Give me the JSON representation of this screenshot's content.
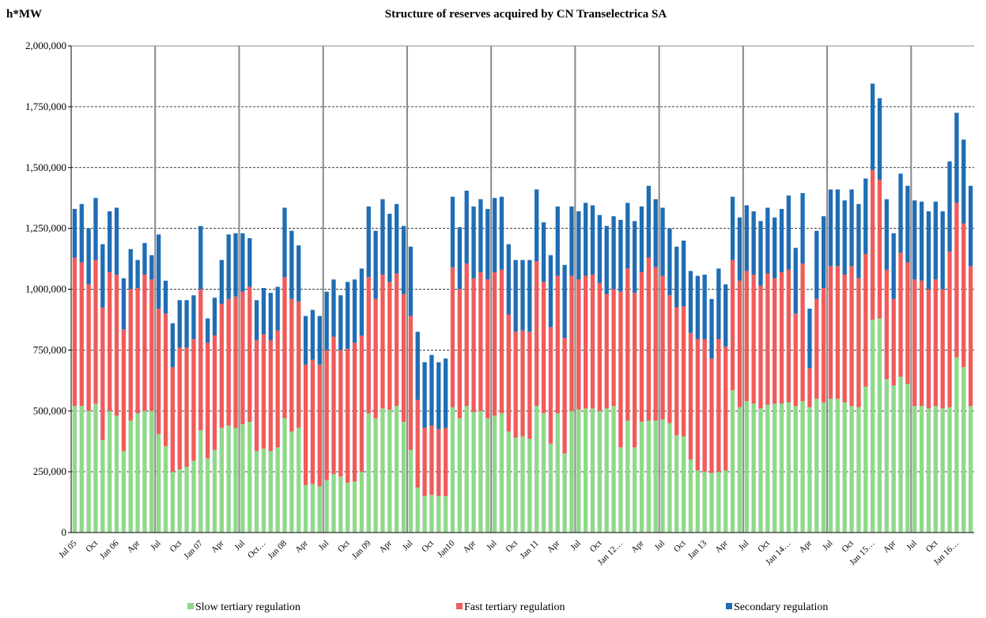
{
  "chart_data": {
    "type": "stacked_bar",
    "title": "Structure of reserves acquired by CN Transelectrica SA",
    "y_axis_label": "h*MW",
    "categories": [
      "Jul 05",
      null,
      null,
      "Oct",
      null,
      null,
      "Jan 06",
      null,
      null,
      "Apr",
      null,
      null,
      "Jul",
      null,
      null,
      "Oct",
      null,
      null,
      "Jan 07",
      null,
      null,
      "Apr",
      null,
      null,
      "Jul",
      null,
      null,
      "Oct…",
      null,
      null,
      "Jan 08",
      null,
      null,
      "Apr",
      null,
      null,
      "Jul",
      null,
      null,
      "Oct",
      null,
      null,
      "Jan 09",
      null,
      null,
      "Apr",
      null,
      null,
      "Jul",
      null,
      null,
      "Oct",
      null,
      null,
      "Jan10",
      null,
      null,
      "Apr",
      null,
      null,
      "Jul",
      null,
      null,
      "Oct",
      null,
      null,
      "Jan 11",
      null,
      null,
      "Apr",
      null,
      null,
      "Jul",
      null,
      null,
      "Oct",
      null,
      null,
      "Jan 12…",
      null,
      null,
      "Apr",
      null,
      null,
      "Jul",
      null,
      null,
      "Oct",
      null,
      null,
      "Jan 13",
      null,
      null,
      "Apr",
      null,
      null,
      "Jul",
      null,
      null,
      "Oct",
      null,
      null,
      "Jan 14…",
      null,
      null,
      "Apr",
      null,
      null,
      "Jul",
      null,
      null,
      "Oct",
      null,
      null,
      "Jan 15…",
      null,
      null,
      "Apr",
      null,
      null,
      "Jul",
      null,
      null,
      "Oct",
      null,
      null,
      "Jan 16…",
      null,
      null
    ],
    "series": [
      {
        "name": "Slow tertiary regulation",
        "color": "#8fd98a",
        "values": [
          520000,
          520000,
          500000,
          530000,
          380000,
          500000,
          480000,
          335000,
          460000,
          490000,
          500000,
          500000,
          405000,
          355000,
          250000,
          260000,
          270000,
          295000,
          420000,
          305000,
          340000,
          430000,
          440000,
          430000,
          445000,
          455000,
          335000,
          345000,
          335000,
          350000,
          470000,
          415000,
          430000,
          195000,
          200000,
          190000,
          215000,
          240000,
          230000,
          205000,
          210000,
          250000,
          490000,
          470000,
          510000,
          505000,
          520000,
          455000,
          340000,
          185000,
          150000,
          155000,
          150000,
          150000,
          515000,
          470000,
          520000,
          495000,
          500000,
          470000,
          480000,
          490000,
          415000,
          390000,
          395000,
          385000,
          520000,
          490000,
          365000,
          490000,
          325000,
          500000,
          505000,
          510000,
          510000,
          500000,
          510000,
          520000,
          350000,
          460000,
          350000,
          455000,
          460000,
          460000,
          465000,
          450000,
          400000,
          395000,
          300000,
          255000,
          250000,
          245000,
          250000,
          255000,
          585000,
          515000,
          540000,
          530000,
          510000,
          525000,
          530000,
          530000,
          535000,
          520000,
          540000,
          515000,
          550000,
          535000,
          550000,
          550000,
          535000,
          520000,
          515000,
          600000,
          875000,
          880000,
          630000,
          605000,
          640000,
          610000,
          520000,
          520000,
          510000,
          520000,
          510000,
          515000,
          720000,
          680000,
          520000
        ]
      },
      {
        "name": "Fast tertiary regulation",
        "color": "#f05b5b",
        "values": [
          610000,
          590000,
          520000,
          590000,
          545000,
          570000,
          580000,
          500000,
          540000,
          515000,
          560000,
          540000,
          515000,
          545000,
          430000,
          500000,
          490000,
          500000,
          580000,
          475000,
          470000,
          510000,
          520000,
          540000,
          545000,
          555000,
          455000,
          470000,
          455000,
          480000,
          580000,
          545000,
          520000,
          495000,
          510000,
          500000,
          535000,
          565000,
          520000,
          550000,
          570000,
          560000,
          560000,
          490000,
          550000,
          525000,
          545000,
          525000,
          550000,
          360000,
          280000,
          285000,
          275000,
          280000,
          575000,
          530000,
          585000,
          550000,
          570000,
          570000,
          590000,
          590000,
          480000,
          435000,
          435000,
          440000,
          595000,
          540000,
          480000,
          565000,
          475000,
          555000,
          535000,
          545000,
          550000,
          525000,
          470000,
          480000,
          640000,
          625000,
          635000,
          615000,
          670000,
          630000,
          590000,
          525000,
          525000,
          535000,
          520000,
          540000,
          545000,
          470000,
          545000,
          510000,
          535000,
          520000,
          535000,
          530000,
          505000,
          540000,
          515000,
          540000,
          545000,
          380000,
          565000,
          160000,
          410000,
          470000,
          545000,
          545000,
          525000,
          575000,
          530000,
          545000,
          615000,
          570000,
          450000,
          355000,
          510000,
          500000,
          520000,
          515000,
          490000,
          520000,
          490000,
          640000,
          635000,
          590000,
          575000
        ]
      },
      {
        "name": "Secondary regulation",
        "color": "#1f6db5",
        "values": [
          200000,
          240000,
          230000,
          255000,
          260000,
          250000,
          275000,
          210000,
          165000,
          115000,
          130000,
          100000,
          305000,
          135000,
          180000,
          195000,
          195000,
          180000,
          260000,
          100000,
          155000,
          180000,
          265000,
          260000,
          240000,
          200000,
          165000,
          190000,
          195000,
          180000,
          285000,
          280000,
          230000,
          200000,
          205000,
          200000,
          240000,
          235000,
          225000,
          275000,
          260000,
          275000,
          290000,
          280000,
          310000,
          280000,
          285000,
          280000,
          285000,
          280000,
          270000,
          290000,
          275000,
          285000,
          290000,
          255000,
          300000,
          295000,
          300000,
          290000,
          305000,
          300000,
          290000,
          295000,
          290000,
          295000,
          295000,
          245000,
          295000,
          285000,
          300000,
          285000,
          280000,
          300000,
          285000,
          280000,
          280000,
          300000,
          295000,
          270000,
          295000,
          270000,
          295000,
          280000,
          280000,
          275000,
          250000,
          270000,
          255000,
          260000,
          265000,
          245000,
          290000,
          255000,
          260000,
          260000,
          270000,
          260000,
          265000,
          270000,
          250000,
          260000,
          305000,
          270000,
          290000,
          245000,
          280000,
          295000,
          315000,
          315000,
          305000,
          315000,
          305000,
          310000,
          355000,
          335000,
          290000,
          270000,
          325000,
          315000,
          325000,
          325000,
          320000,
          320000,
          320000,
          370000,
          370000,
          345000,
          330000
        ]
      }
    ],
    "ylim": [
      0,
      2000000
    ],
    "yticks": [
      0,
      {
        "value": 250000,
        "label": "250,000"
      },
      {
        "value": 500000,
        "label": "500,000"
      },
      {
        "value": 750000,
        "label": "750,000"
      },
      {
        "value": 1000000,
        "label": "1,000,000"
      },
      {
        "value": 1250000,
        "label": "1,250,000"
      },
      {
        "value": 1500000,
        "label": "1,500,000"
      },
      {
        "value": 1750000,
        "label": "1,750,000"
      },
      {
        "value": 2000000,
        "label": "2,000,000"
      }
    ],
    "grid": true,
    "legend": "bottom"
  }
}
